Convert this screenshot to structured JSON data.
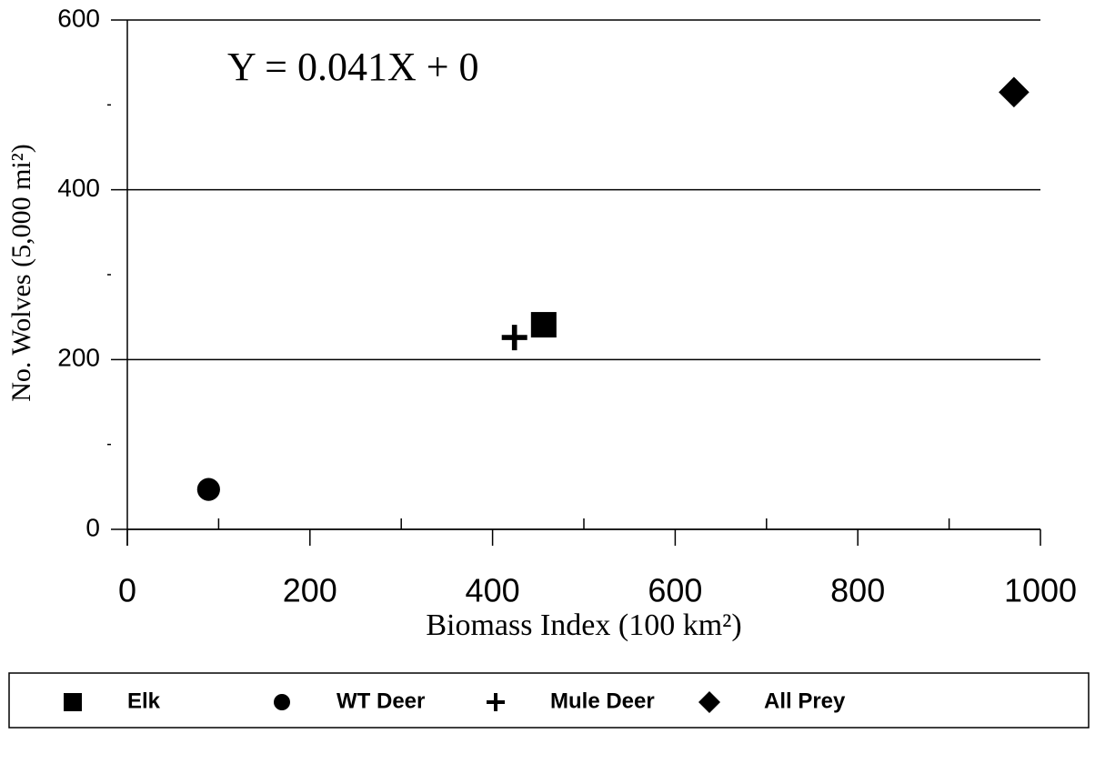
{
  "chart_data": {
    "type": "scatter",
    "annotation": "Y = 0.041X + 0",
    "x_label": "Biomass Index (100 km²)",
    "y_label": "No. Wolves (5,000 mi²)",
    "series": [
      {
        "name": "Elk",
        "color": "#000000",
        "marker": "square",
        "x": [
          456
        ],
        "values": [
          241
        ]
      },
      {
        "name": "WT Deer",
        "color": "#000000",
        "marker": "circle",
        "x": [
          89
        ],
        "values": [
          47
        ]
      },
      {
        "name": "Mule Deer",
        "color": "#000000",
        "marker": "plus",
        "x": [
          424
        ],
        "values": [
          226
        ]
      },
      {
        "name": "All Prey",
        "color": "#000000",
        "marker": "diamond",
        "x": [
          971
        ],
        "values": [
          515
        ]
      }
    ],
    "xlim": [
      0,
      1000
    ],
    "xticks": [
      0,
      200,
      400,
      600,
      800,
      1000
    ],
    "xminor_ticks": [
      100,
      300,
      500,
      700,
      900
    ],
    "ylim": [
      0,
      600
    ],
    "yticks": [
      0,
      200,
      400,
      600
    ],
    "yminor_ticks": [
      100,
      300,
      500
    ],
    "grid": true,
    "legend": "bottom"
  }
}
